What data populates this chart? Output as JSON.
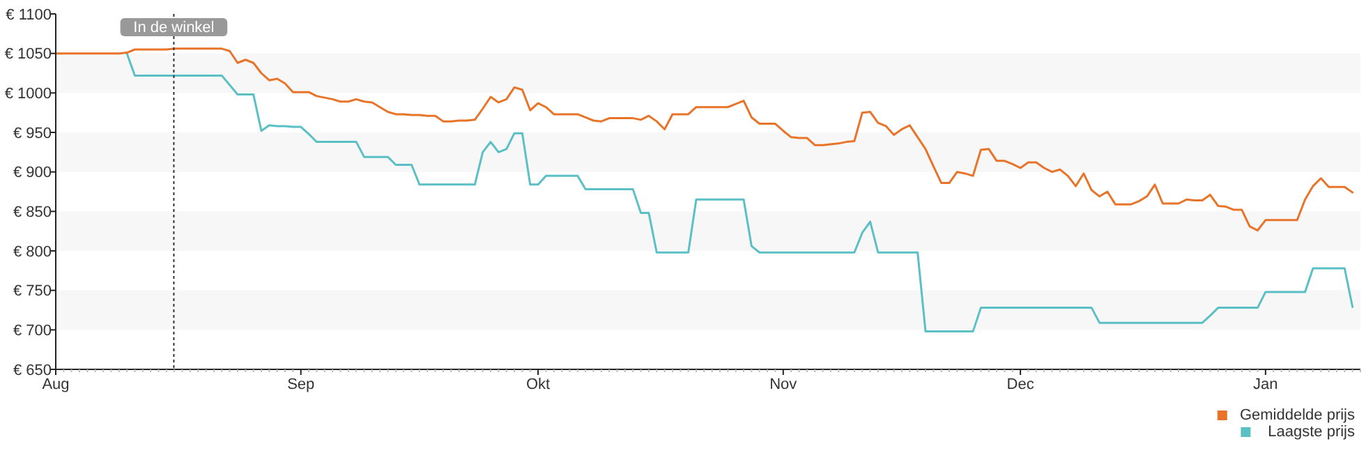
{
  "chart_data": {
    "type": "line",
    "categories": [
      "Aug",
      null,
      null,
      null,
      null,
      null,
      null,
      null,
      null,
      null,
      null,
      null,
      null,
      null,
      null,
      null,
      null,
      null,
      null,
      null,
      null,
      null,
      null,
      null,
      null,
      null,
      null,
      null,
      null,
      null,
      null,
      "Sep",
      null,
      null,
      null,
      null,
      null,
      null,
      null,
      null,
      null,
      null,
      null,
      null,
      null,
      null,
      null,
      null,
      null,
      null,
      null,
      null,
      null,
      null,
      null,
      null,
      null,
      null,
      null,
      null,
      null,
      "Okt",
      null,
      null,
      null,
      null,
      null,
      null,
      null,
      null,
      null,
      null,
      null,
      null,
      null,
      null,
      null,
      null,
      null,
      null,
      null,
      null,
      null,
      null,
      null,
      null,
      null,
      null,
      null,
      null,
      null,
      null,
      "Nov",
      null,
      null,
      null,
      null,
      null,
      null,
      null,
      null,
      null,
      null,
      null,
      null,
      null,
      null,
      null,
      null,
      null,
      null,
      null,
      null,
      null,
      null,
      null,
      null,
      null,
      null,
      null,
      null,
      null,
      "Dec",
      null,
      null,
      null,
      null,
      null,
      null,
      null,
      null,
      null,
      null,
      null,
      null,
      null,
      null,
      null,
      null,
      null,
      null,
      null,
      null,
      null,
      null,
      null,
      null,
      null,
      null,
      null,
      null,
      null,
      null,
      "Jan",
      null,
      null,
      null,
      null,
      null,
      null,
      null,
      null,
      null,
      null,
      null,
      null
    ],
    "ylim": [
      650,
      1100
    ],
    "yticks": [
      {
        "value": 650,
        "label": "€ 650"
      },
      {
        "value": 700,
        "label": "€ 700"
      },
      {
        "value": 750,
        "label": "€ 750"
      },
      {
        "value": 800,
        "label": "€ 800"
      },
      {
        "value": 850,
        "label": "€ 850"
      },
      {
        "value": 900,
        "label": "€ 900"
      },
      {
        "value": 950,
        "label": "€ 950"
      },
      {
        "value": 1000,
        "label": "€ 1000"
      },
      {
        "value": 1050,
        "label": "€ 1050"
      },
      {
        "value": 1100,
        "label": "€ 1100"
      }
    ],
    "grid": false,
    "legend": "bottom right",
    "marker": "none",
    "line_style": "solid",
    "annotations": [
      "In de winkel"
    ],
    "series": [
      {
        "name": "Gemiddelde prijs",
        "color": "#e8742a",
        "values": [
          1050,
          1050,
          1050,
          1050,
          1050,
          1050,
          1050,
          1050,
          1050,
          1051,
          1055,
          1055,
          1055,
          1055,
          1055,
          1056,
          1056,
          1056,
          1056,
          1056,
          1056,
          1056,
          1053,
          1038,
          1042,
          1038,
          1025,
          1016,
          1018,
          1012,
          1001,
          1001,
          1001,
          996,
          994,
          992,
          989,
          989,
          992,
          989,
          988,
          982,
          976,
          973,
          973,
          972,
          972,
          971,
          971,
          964,
          964,
          965,
          965,
          966,
          980,
          995,
          988,
          992,
          1007,
          1004,
          978,
          987,
          982,
          973,
          973,
          973,
          973,
          969,
          965,
          964,
          968,
          968,
          968,
          968,
          966,
          971,
          964,
          954,
          973,
          973,
          973,
          982,
          982,
          982,
          982,
          982,
          986,
          990,
          969,
          961,
          961,
          961,
          952,
          944,
          943,
          943,
          934,
          934,
          935,
          936,
          938,
          939,
          975,
          976,
          962,
          958,
          947,
          954,
          959,
          944,
          929,
          907,
          886,
          886,
          900,
          898,
          895,
          928,
          929,
          914,
          914,
          910,
          905,
          912,
          912,
          905,
          900,
          903,
          895,
          882,
          898,
          877,
          869,
          875,
          859,
          859,
          859,
          863,
          869,
          884,
          860,
          860,
          860,
          865,
          864,
          864,
          871,
          857,
          856,
          852,
          852,
          831,
          826,
          839,
          839,
          839,
          839,
          839,
          865,
          882,
          892,
          881,
          881,
          881,
          874,
          null
        ]
      },
      {
        "name": "Laagste prijs",
        "color": "#5bbfc6",
        "values": [
          null,
          null,
          null,
          null,
          null,
          null,
          null,
          null,
          null,
          1050,
          1022,
          1022,
          1022,
          1022,
          1022,
          1022,
          1022,
          1022,
          1022,
          1022,
          1022,
          1022,
          1010,
          998,
          998,
          998,
          952,
          959,
          958,
          958,
          957,
          957,
          948,
          938,
          938,
          938,
          938,
          938,
          938,
          919,
          919,
          919,
          919,
          909,
          909,
          909,
          884,
          884,
          884,
          884,
          884,
          884,
          884,
          884,
          925,
          938,
          925,
          929,
          949,
          949,
          884,
          884,
          895,
          895,
          895,
          895,
          895,
          878,
          878,
          878,
          878,
          878,
          878,
          878,
          848,
          848,
          798,
          798,
          798,
          798,
          798,
          865,
          865,
          865,
          865,
          865,
          865,
          865,
          806,
          798,
          798,
          798,
          798,
          798,
          798,
          798,
          798,
          798,
          798,
          798,
          798,
          798,
          823,
          837,
          798,
          798,
          798,
          798,
          798,
          798,
          698,
          698,
          698,
          698,
          698,
          698,
          698,
          728,
          728,
          728,
          728,
          728,
          728,
          728,
          728,
          728,
          728,
          728,
          728,
          728,
          728,
          728,
          709,
          709,
          709,
          709,
          709,
          709,
          709,
          709,
          709,
          709,
          709,
          709,
          709,
          709,
          718,
          728,
          728,
          728,
          728,
          728,
          728,
          748,
          748,
          748,
          748,
          748,
          748,
          778,
          778,
          778,
          778,
          778,
          729,
          null
        ]
      }
    ]
  }
}
